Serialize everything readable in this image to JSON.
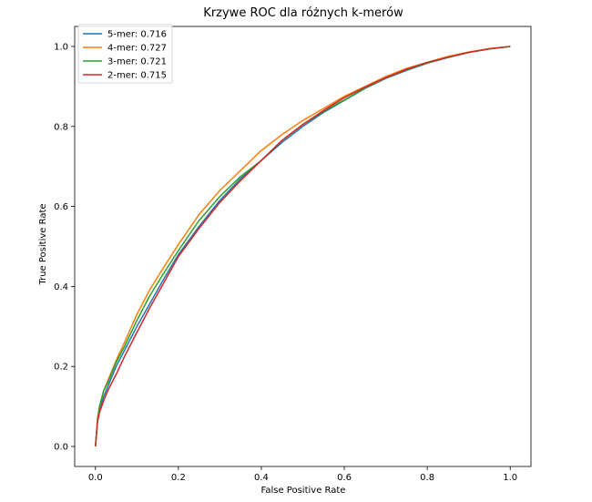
{
  "chart_data": {
    "type": "line",
    "title": "Krzywe ROC dla różnych k-merów",
    "xlabel": "False Positive Rate",
    "ylabel": "True Positive Rate",
    "xlim": [
      -0.05,
      1.05
    ],
    "ylim": [
      -0.05,
      1.05
    ],
    "xticks": [
      "0.0",
      "0.2",
      "0.4",
      "0.6",
      "0.8",
      "1.0"
    ],
    "yticks": [
      "0.0",
      "0.2",
      "0.4",
      "0.6",
      "0.8",
      "1.0"
    ],
    "grid": false,
    "legend_position": "top-left",
    "series": [
      {
        "name": "5-mer: 0.716",
        "color": "#1f77b4",
        "x": [
          0,
          0.005,
          0.01,
          0.02,
          0.03,
          0.05,
          0.07,
          0.1,
          0.13,
          0.16,
          0.2,
          0.25,
          0.3,
          0.35,
          0.4,
          0.45,
          0.5,
          0.55,
          0.6,
          0.65,
          0.7,
          0.75,
          0.8,
          0.85,
          0.9,
          0.95,
          1.0
        ],
        "y": [
          0,
          0.06,
          0.09,
          0.125,
          0.15,
          0.2,
          0.24,
          0.3,
          0.355,
          0.41,
          0.48,
          0.55,
          0.615,
          0.67,
          0.715,
          0.76,
          0.8,
          0.835,
          0.865,
          0.895,
          0.92,
          0.94,
          0.958,
          0.972,
          0.985,
          0.994,
          1.0
        ]
      },
      {
        "name": "4-mer: 0.727",
        "color": "#ff7f0e",
        "x": [
          0,
          0.005,
          0.01,
          0.02,
          0.03,
          0.05,
          0.07,
          0.1,
          0.13,
          0.16,
          0.2,
          0.25,
          0.3,
          0.35,
          0.4,
          0.45,
          0.5,
          0.55,
          0.6,
          0.65,
          0.7,
          0.75,
          0.8,
          0.85,
          0.9,
          0.95,
          1.0
        ],
        "y": [
          0,
          0.07,
          0.1,
          0.14,
          0.165,
          0.215,
          0.26,
          0.33,
          0.39,
          0.44,
          0.505,
          0.58,
          0.64,
          0.69,
          0.74,
          0.78,
          0.815,
          0.845,
          0.875,
          0.9,
          0.925,
          0.945,
          0.96,
          0.975,
          0.986,
          0.995,
          1.0
        ]
      },
      {
        "name": "3-mer: 0.721",
        "color": "#2ca02c",
        "x": [
          0,
          0.005,
          0.01,
          0.02,
          0.03,
          0.05,
          0.07,
          0.1,
          0.13,
          0.16,
          0.2,
          0.25,
          0.3,
          0.35,
          0.4,
          0.45,
          0.5,
          0.55,
          0.6,
          0.65,
          0.7,
          0.75,
          0.8,
          0.85,
          0.9,
          0.95,
          1.0
        ],
        "y": [
          0,
          0.065,
          0.1,
          0.14,
          0.16,
          0.21,
          0.25,
          0.315,
          0.375,
          0.425,
          0.49,
          0.565,
          0.625,
          0.675,
          0.715,
          0.765,
          0.805,
          0.838,
          0.866,
          0.896,
          0.921,
          0.942,
          0.959,
          0.973,
          0.985,
          0.994,
          1.0
        ]
      },
      {
        "name": "2-mer: 0.715",
        "color": "#d62728",
        "x": [
          0,
          0.005,
          0.01,
          0.02,
          0.03,
          0.05,
          0.07,
          0.1,
          0.13,
          0.16,
          0.2,
          0.25,
          0.3,
          0.35,
          0.4,
          0.45,
          0.5,
          0.55,
          0.6,
          0.65,
          0.7,
          0.75,
          0.8,
          0.85,
          0.9,
          0.95,
          1.0
        ],
        "y": [
          0,
          0.06,
          0.085,
          0.115,
          0.14,
          0.18,
          0.225,
          0.285,
          0.345,
          0.4,
          0.475,
          0.545,
          0.61,
          0.665,
          0.715,
          0.765,
          0.805,
          0.84,
          0.872,
          0.898,
          0.922,
          0.943,
          0.96,
          0.973,
          0.985,
          0.994,
          1.0
        ]
      }
    ]
  }
}
